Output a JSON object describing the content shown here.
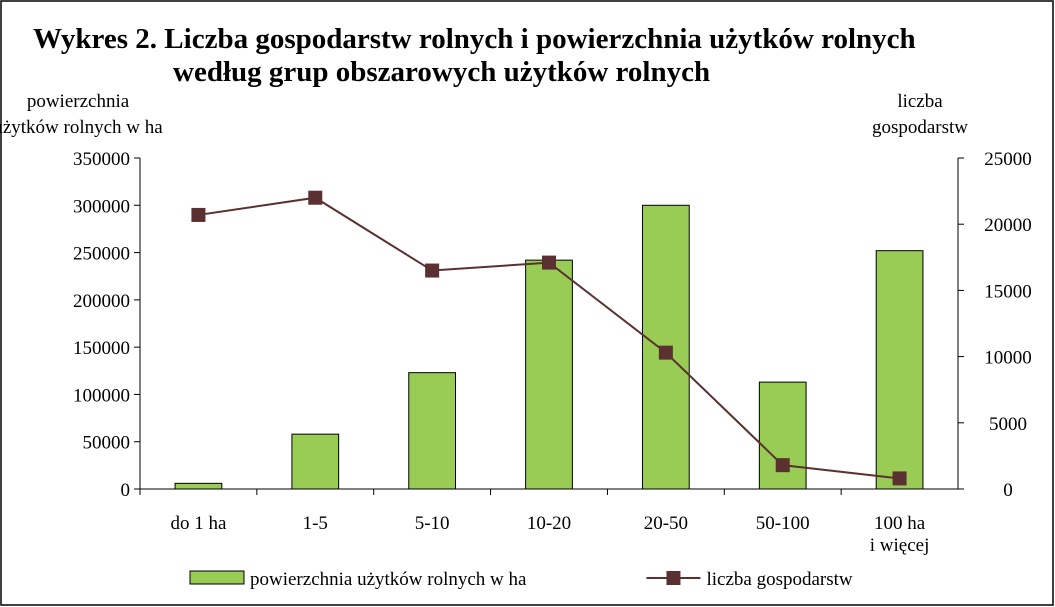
{
  "chart_data": {
    "type": "bar_line",
    "title": "Wykres 2. Liczba gospodarstw rolnych i powierzchnia użytków rolnych\nwedług grup obszarowych użytków rolnych",
    "y_label": "powierzchnia\nużytków rolnych w ha",
    "y2_label": "liczba\ngospodarstw",
    "categories": [
      "do 1 ha",
      "1-5",
      "5-10",
      "10-20",
      "20-50",
      "50-100",
      "100 ha\ni więcej"
    ],
    "series": [
      {
        "name": "powierzchnia użytków rolnych w ha",
        "type": "bar",
        "color": "#99cc55",
        "values": [
          6000,
          58000,
          123000,
          242000,
          300000,
          113000,
          252000
        ]
      },
      {
        "name": "liczba gospodarstw",
        "type": "line",
        "axis": "y2",
        "color": "#5a3030",
        "values": [
          20700,
          22000,
          16500,
          17100,
          10300,
          1800,
          800
        ]
      }
    ],
    "ylim": [
      0,
      350000
    ],
    "yticks": [
      0,
      50000,
      100000,
      150000,
      200000,
      250000,
      300000,
      350000
    ],
    "y2lim": [
      0,
      25000
    ],
    "y2ticks": [
      0,
      5000,
      10000,
      15000,
      20000,
      25000
    ],
    "legend": "bottom"
  }
}
